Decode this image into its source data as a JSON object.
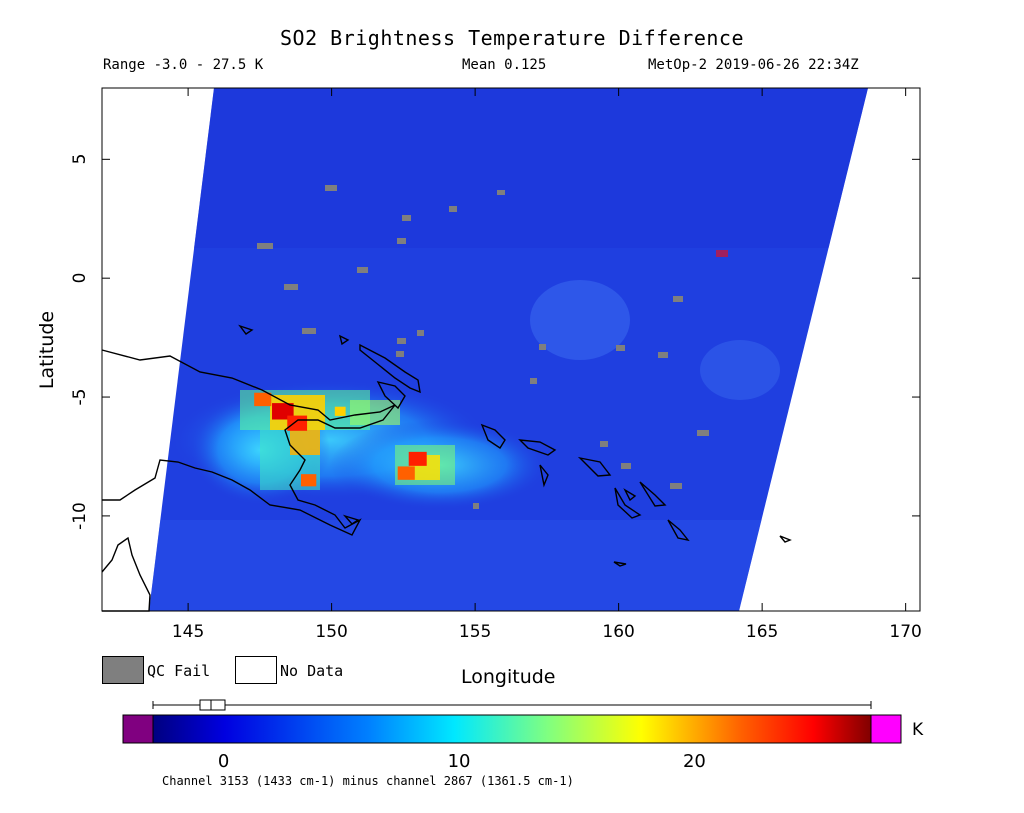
{
  "header": {
    "title": "SO2 Brightness Temperature Difference",
    "range": "Range -3.0 - 27.5 K",
    "mean": "Mean 0.125",
    "satellite_time": "MetOp-2 2019-06-26 22:34Z"
  },
  "axes": {
    "xlabel": "Longitude",
    "ylabel": "Latitude",
    "xticks": [
      "145",
      "150",
      "155",
      "160",
      "165",
      "170"
    ],
    "yticks": [
      "5",
      "0",
      "-5",
      "-10"
    ],
    "xlim": [
      142,
      170.5
    ],
    "ylim": [
      -14,
      8
    ]
  },
  "legend": {
    "qc_fail": "QC Fail",
    "no_data": "No Data",
    "qc_color": "#7f7f7f",
    "nodata_color": "#ffffff"
  },
  "colorbar": {
    "unit": "K",
    "ticks": [
      {
        "label": "0",
        "value": 0
      },
      {
        "label": "10",
        "value": 10
      },
      {
        "label": "20",
        "value": 20
      }
    ],
    "range": [
      -3.0,
      27.5
    ],
    "under_color": "#800080",
    "over_color": "#ff00ff",
    "note": "Channel 3153 (1433 cm-1) minus channel 2867 (1361.5 cm-1)"
  },
  "map": {
    "background_color": "#1f3fe0",
    "hotspots": [
      {
        "lon": 148.3,
        "lat": -5.6,
        "value": 24
      },
      {
        "lon": 148.8,
        "lat": -6.1,
        "value": 22
      },
      {
        "lon": 147.6,
        "lat": -5.1,
        "value": 19
      },
      {
        "lon": 153.0,
        "lat": -7.6,
        "value": 20
      },
      {
        "lon": 152.6,
        "lat": -8.2,
        "value": 19
      },
      {
        "lon": 149.2,
        "lat": -8.5,
        "value": 17
      },
      {
        "lon": 150.3,
        "lat": -5.6,
        "value": 12
      }
    ]
  }
}
